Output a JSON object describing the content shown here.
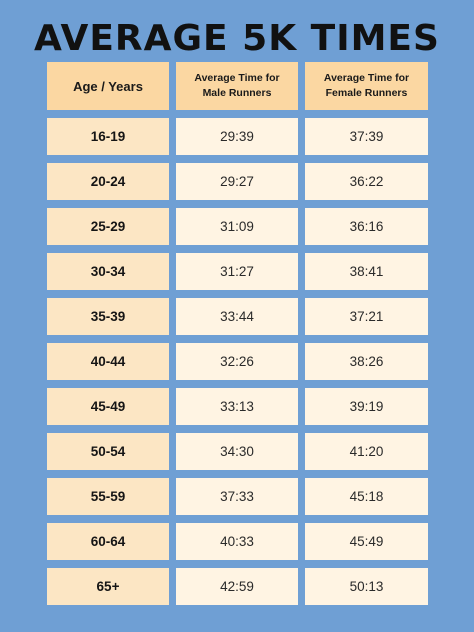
{
  "title": "AVERAGE 5K TIMES",
  "headers": {
    "age": "Age / Years",
    "male": "Average Time for Male Runners",
    "female": "Average Time for Female Runners"
  },
  "rows": [
    {
      "age": "16-19",
      "male": "29:39",
      "female": "37:39"
    },
    {
      "age": "20-24",
      "male": "29:27",
      "female": "36:22"
    },
    {
      "age": "25-29",
      "male": "31:09",
      "female": "36:16"
    },
    {
      "age": "30-34",
      "male": "31:27",
      "female": "38:41"
    },
    {
      "age": "35-39",
      "male": "33:44",
      "female": "37:21"
    },
    {
      "age": "40-44",
      "male": "32:26",
      "female": "38:26"
    },
    {
      "age": "45-49",
      "male": "33:13",
      "female": "39:19"
    },
    {
      "age": "50-54",
      "male": "34:30",
      "female": "41:20"
    },
    {
      "age": "55-59",
      "male": "37:33",
      "female": "45:18"
    },
    {
      "age": "60-64",
      "male": "40:33",
      "female": "45:49"
    },
    {
      "age": "65+",
      "male": "42:59",
      "female": "50:13"
    }
  ]
}
